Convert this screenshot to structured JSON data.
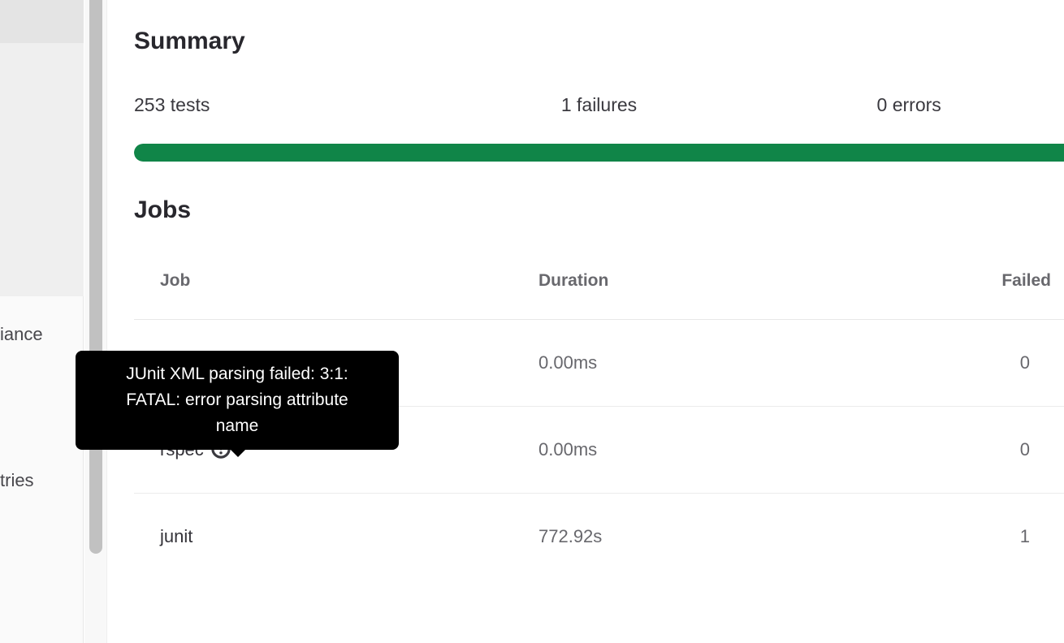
{
  "sidebar": {
    "items": [
      {
        "label": "iance"
      },
      {
        "label": "tries"
      }
    ]
  },
  "summary": {
    "heading": "Summary",
    "tests_label": "253 tests",
    "failures_label": "1 failures",
    "errors_label": "0 errors",
    "progress_percent": 100,
    "progress_color": "#108548"
  },
  "jobs": {
    "heading": "Jobs",
    "columns": {
      "job": "Job",
      "duration": "Duration",
      "failed": "Failed"
    },
    "rows": [
      {
        "job": "",
        "duration": "0.00ms",
        "failed": "0"
      },
      {
        "job": "rspec",
        "duration": "0.00ms",
        "failed": "0"
      },
      {
        "job": "junit",
        "duration": "772.92s",
        "failed": "1"
      }
    ]
  },
  "tooltip": {
    "text": "JUnit XML parsing failed: 3:1: FATAL: error parsing attribute name"
  },
  "colors": {
    "tooltip_bg": "#000000",
    "scrollbar_thumb": "#c1c1c1"
  }
}
